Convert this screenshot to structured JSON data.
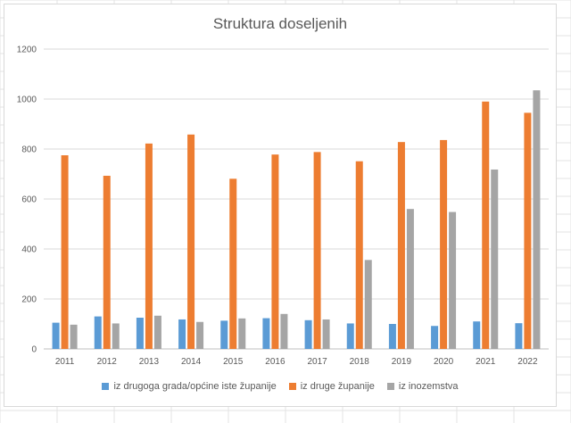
{
  "chart_data": {
    "type": "bar",
    "title": "Struktura doseljenih",
    "categories": [
      "2011",
      "2012",
      "2013",
      "2014",
      "2015",
      "2016",
      "2017",
      "2018",
      "2019",
      "2020",
      "2021",
      "2022"
    ],
    "series": [
      {
        "name": "iz drugoga grada/općine iste županije",
        "color": "#5b9bd5",
        "values": [
          105,
          130,
          125,
          118,
          113,
          123,
          115,
          102,
          100,
          92,
          110,
          103
        ]
      },
      {
        "name": "iz druge županije",
        "color": "#ed7d31",
        "values": [
          775,
          693,
          822,
          858,
          681,
          778,
          788,
          751,
          828,
          836,
          990,
          945
        ]
      },
      {
        "name": "iz inozemstva",
        "color": "#a5a5a5",
        "values": [
          97,
          102,
          133,
          108,
          122,
          140,
          118,
          356,
          560,
          548,
          718,
          1035
        ]
      }
    ],
    "yticks": [
      0,
      200,
      400,
      600,
      800,
      1000,
      1200
    ],
    "ylim": [
      0,
      1200
    ],
    "grid": true,
    "legend_position": "bottom"
  }
}
